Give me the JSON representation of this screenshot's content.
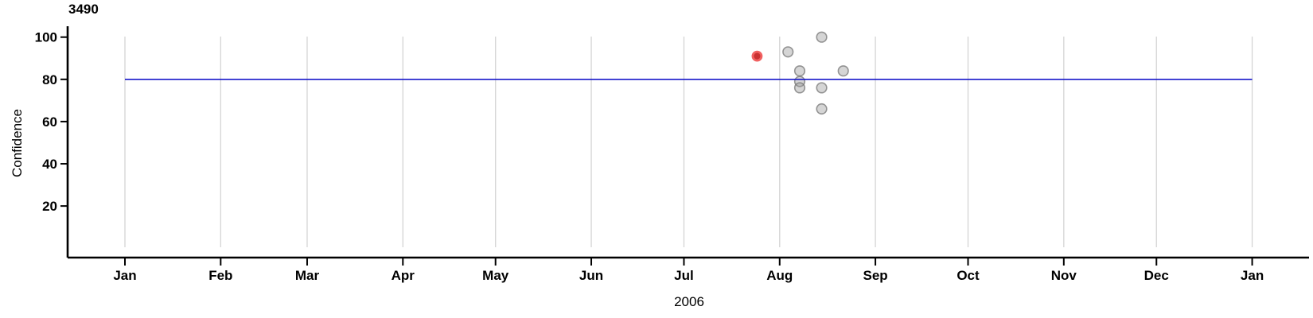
{
  "page": {
    "background_color": "#ffffff"
  },
  "chart": {
    "colors": {
      "axis": "#000000",
      "gridline": "#d4d4d4",
      "reference_line": "#1717c9",
      "gray_point_fill": "rgba(150,150,150,0.40)",
      "gray_point_stroke": "rgba(118,118,118,0.75)",
      "red_point_fill": "#ca3232",
      "red_point_stroke": "#f16161",
      "tick_label_color": "#000000"
    }
  },
  "chart_data": {
    "type": "scatter",
    "title": "3490",
    "xlabel": "2006",
    "ylabel": "Confidence",
    "grid": "vertical-monthly",
    "legend": "none",
    "x_axis": {
      "unit": "months of 2006 (time axis, linear in days)",
      "tick_labels": [
        "Jan",
        "Feb",
        "Mar",
        "Apr",
        "May",
        "Jun",
        "Jul",
        "Aug",
        "Sep",
        "Oct",
        "Nov",
        "Dec",
        "Jan"
      ],
      "tick_day_of_year": [
        0,
        31,
        59,
        90,
        120,
        151,
        181,
        212,
        243,
        273,
        304,
        334,
        365
      ]
    },
    "y_axis": {
      "tick_values": [
        100,
        80,
        60,
        40,
        20
      ],
      "range": [
        0,
        105
      ]
    },
    "reference_line": {
      "y": 80,
      "start_day": 0,
      "end_day": 365
    },
    "series": [
      {
        "name": "observations",
        "marker": "gray-circle",
        "points": [
          {
            "approx_date": "Aug 3",
            "day_of_year": 214.7,
            "confidence": 93
          },
          {
            "approx_date": "Aug 14",
            "day_of_year": 225.6,
            "confidence": 100
          },
          {
            "approx_date": "Aug 7",
            "day_of_year": 218.5,
            "confidence": 84
          },
          {
            "approx_date": "Aug 21",
            "day_of_year": 232.6,
            "confidence": 84
          },
          {
            "approx_date": "Aug 7",
            "day_of_year": 218.5,
            "confidence": 79
          },
          {
            "approx_date": "Aug 7",
            "day_of_year": 218.5,
            "confidence": 76
          },
          {
            "approx_date": "Aug 14",
            "day_of_year": 225.6,
            "confidence": 76
          },
          {
            "approx_date": "Aug 14",
            "day_of_year": 225.6,
            "confidence": 66
          }
        ]
      },
      {
        "name": "highlighted",
        "marker": "red-circle",
        "points": [
          {
            "approx_date": "Jul 24",
            "day_of_year": 204.7,
            "confidence": 91
          }
        ]
      }
    ]
  }
}
